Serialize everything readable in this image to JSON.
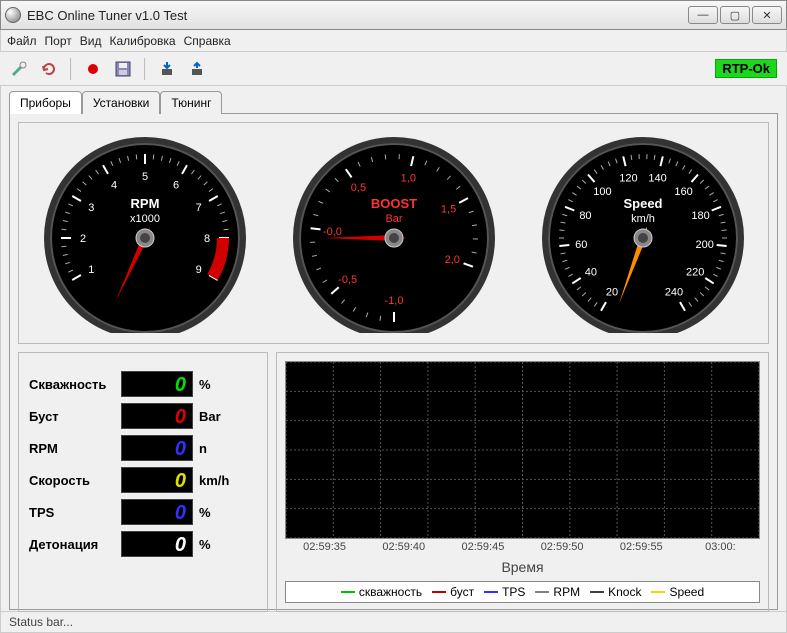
{
  "window": {
    "title": "EBC Online Tuner v1.0 Test"
  },
  "menu": {
    "file": "Файл",
    "port": "Порт",
    "view": "Вид",
    "calibration": "Калибровка",
    "help": "Справка"
  },
  "toolbar": {
    "rtp_status": "RTP-Ok",
    "rtp_color": "#1fd61f"
  },
  "tabs": {
    "panels": "Приборы",
    "settings": "Установки",
    "tuning": "Тюнинг",
    "active_index": 0
  },
  "gauges": {
    "rpm": {
      "title": "RPM",
      "subtitle": "x1000",
      "value": 0,
      "ticks": [
        "1",
        "2",
        "3",
        "4",
        "5",
        "6",
        "7",
        "8",
        "9"
      ],
      "label_color": "#ffffff",
      "needle_color": "#d00000",
      "redzone_start": 8,
      "redzone_end": 9,
      "redzone_color": "#d00000",
      "face_color": "#000000",
      "bezel_color": "#1a1a1a"
    },
    "boost": {
      "title": "BOOST",
      "subtitle": "Bar",
      "value": 0,
      "ticks": [
        "-1,0",
        "-0,5",
        "-0,0",
        "0,5",
        "1,0",
        "1,5",
        "2,0"
      ],
      "label_color": "#ff3333",
      "needle_color": "#d00000",
      "face_color": "#000000",
      "bezel_color": "#1a1a1a"
    },
    "speed": {
      "title": "Speed",
      "subtitle": "km/h",
      "value": 0,
      "ticks": [
        "20",
        "40",
        "60",
        "80",
        "100",
        "120",
        "140",
        "160",
        "180",
        "200",
        "220",
        "240"
      ],
      "label_color": "#ffffff",
      "needle_color": "#ff8c00",
      "face_color": "#000000",
      "bezel_color": "#1a1a1a"
    }
  },
  "readouts": {
    "duty": {
      "label": "Скважность",
      "value": "0",
      "unit": "%",
      "color": "#00e000"
    },
    "boost": {
      "label": "Буст",
      "value": "0",
      "unit": "Bar",
      "color": "#e00000"
    },
    "rpm": {
      "label": "RPM",
      "value": "0",
      "unit": "n",
      "color": "#3030ff"
    },
    "speed": {
      "label": "Скорость",
      "value": "0",
      "unit": "km/h",
      "color": "#e0e000"
    },
    "tps": {
      "label": "TPS",
      "value": "0",
      "unit": "%",
      "color": "#3030ff"
    },
    "knock": {
      "label": "Детонация",
      "value": "0",
      "unit": "%",
      "color": "#ffffff"
    }
  },
  "chart": {
    "x_label": "Время",
    "x_ticks": [
      "02:59:35",
      "02:59:40",
      "02:59:45",
      "02:59:50",
      "02:59:55",
      "03:00:"
    ],
    "grid_rows": 6,
    "grid_cols": 10,
    "background_color": "#000000",
    "grid_color": "#555555",
    "legend": [
      {
        "label": "скважность",
        "color": "#00c000"
      },
      {
        "label": "буст",
        "color": "#c00000"
      },
      {
        "label": "TPS",
        "color": "#3030ff"
      },
      {
        "label": "RPM",
        "color": "#808080"
      },
      {
        "label": "Knock",
        "color": "#404040"
      },
      {
        "label": "Speed",
        "color": "#e0e000"
      }
    ]
  },
  "status": {
    "text": "Status bar..."
  }
}
